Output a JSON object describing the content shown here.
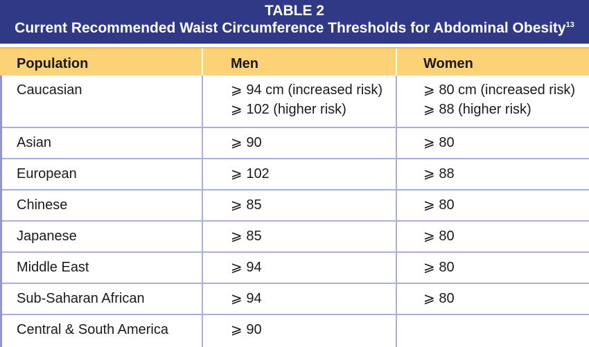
{
  "title": {
    "line1": "TABLE 2",
    "line2": "Current Recommended Waist Circumference Thresholds for Abdominal Obesity",
    "reference": "13"
  },
  "columns": [
    "Population",
    "Men",
    "Women"
  ],
  "rows": [
    {
      "population": "Caucasian",
      "men": [
        "⩾ 94 cm (increased risk)",
        "⩾ 102 (higher risk)"
      ],
      "women": [
        "⩾ 80 cm (increased risk)",
        "⩾ 88 (higher risk)"
      ]
    },
    {
      "population": "Asian",
      "men": [
        "⩾ 90"
      ],
      "women": [
        "⩾ 80"
      ]
    },
    {
      "population": "European",
      "men": [
        "⩾ 102"
      ],
      "women": [
        "⩾ 88"
      ]
    },
    {
      "population": "Chinese",
      "men": [
        "⩾ 85"
      ],
      "women": [
        "⩾ 80"
      ]
    },
    {
      "population": "Japanese",
      "men": [
        "⩾ 85"
      ],
      "women": [
        "⩾ 80"
      ]
    },
    {
      "population": "Middle East",
      "men": [
        "⩾ 94"
      ],
      "women": [
        "⩾ 80"
      ]
    },
    {
      "population": "Sub-Saharan African",
      "men": [
        "⩾ 94"
      ],
      "women": [
        "⩾ 80"
      ]
    },
    {
      "population": "Central & South America",
      "men": [
        "⩾ 90"
      ],
      "women": []
    }
  ],
  "colors": {
    "title_bg": "#2f3986",
    "header_bg": "#fcd277",
    "grid": "#a9aede"
  }
}
